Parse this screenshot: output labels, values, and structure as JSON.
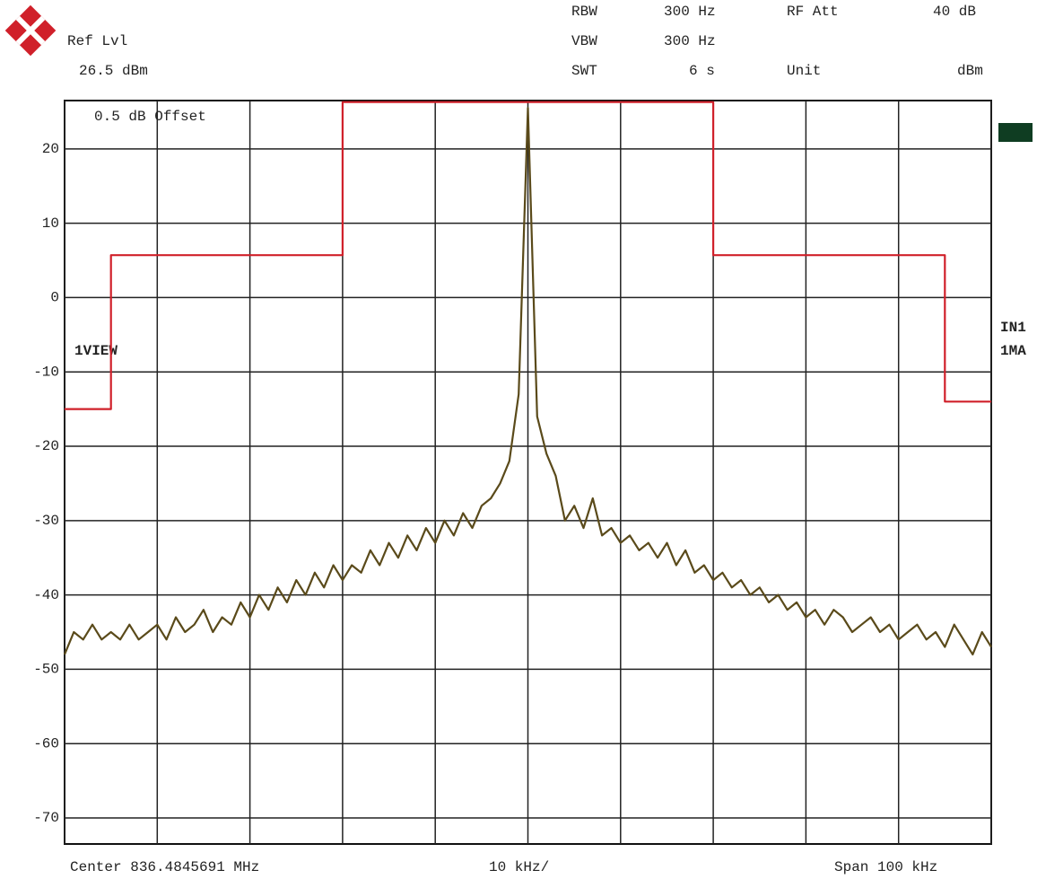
{
  "chart_data": {
    "type": "line",
    "annotations": [
      "RBW",
      "300 Hz",
      "RF Att",
      "40 dB",
      "Ref Lvl",
      "VBW",
      "300 Hz",
      "26.5 dBm",
      "SWT",
      "6 s",
      "Unit",
      "dBm",
      "0.5 dB Offset",
      "1VIEW",
      "IN1",
      "1MA",
      "Center 836.4845691 MHz",
      "10 kHz/",
      "Span 100 kHz"
    ],
    "xlim": [
      -50,
      50
    ],
    "xticks": [
      -50,
      -40,
      -30,
      -20,
      -10,
      0,
      10,
      20,
      30,
      40,
      50
    ],
    "ylim": [
      -73.5,
      26.5
    ],
    "yticks": [
      -70,
      -60,
      -50,
      -40,
      -30,
      -20,
      -10,
      0,
      10,
      20
    ],
    "grid": true,
    "series": [
      {
        "color": "#d0202a",
        "x": [
          -50,
          -45,
          -45,
          -20,
          -20,
          20,
          20,
          45,
          45,
          50
        ],
        "values": [
          -15,
          -15,
          5.7,
          5.7,
          26.3,
          26.3,
          5.7,
          5.7,
          -14,
          -14
        ]
      },
      {
        "color": "#5a4a1a",
        "x": [
          -50,
          -49,
          -48,
          -47,
          -46,
          -45,
          -44,
          -43,
          -42,
          -41,
          -40,
          -39,
          -38,
          -37,
          -36,
          -35,
          -34,
          -33,
          -32,
          -31,
          -30,
          -29,
          -28,
          -27,
          -26,
          -25,
          -24,
          -23,
          -22,
          -21,
          -20,
          -19,
          -18,
          -17,
          -16,
          -15,
          -14,
          -13,
          -12,
          -11,
          -10,
          -9,
          -8,
          -7,
          -6,
          -5,
          -4,
          -3,
          -2,
          -1,
          0,
          1,
          2,
          3,
          4,
          5,
          6,
          7,
          8,
          9,
          10,
          11,
          12,
          13,
          14,
          15,
          16,
          17,
          18,
          19,
          20,
          21,
          22,
          23,
          24,
          25,
          26,
          27,
          28,
          29,
          30,
          31,
          32,
          33,
          34,
          35,
          36,
          37,
          38,
          39,
          40,
          41,
          42,
          43,
          44,
          45,
          46,
          47,
          48,
          49,
          50
        ],
        "values": [
          -48,
          -45,
          -46,
          -44,
          -46,
          -45,
          -46,
          -44,
          -46,
          -45,
          -44,
          -46,
          -43,
          -45,
          -44,
          -42,
          -45,
          -43,
          -44,
          -41,
          -43,
          -40,
          -42,
          -39,
          -41,
          -38,
          -40,
          -37,
          -39,
          -36,
          -38,
          -36,
          -37,
          -34,
          -36,
          -33,
          -35,
          -32,
          -34,
          -31,
          -33,
          -30,
          -32,
          -29,
          -31,
          -28,
          -27,
          -25,
          -22,
          -13,
          25.5,
          -16,
          -21,
          -24,
          -30,
          -28,
          -31,
          -27,
          -32,
          -31,
          -33,
          -32,
          -34,
          -33,
          -35,
          -33,
          -36,
          -34,
          -37,
          -36,
          -38,
          -37,
          -39,
          -38,
          -40,
          -39,
          -41,
          -40,
          -42,
          -41,
          -43,
          -42,
          -44,
          -42,
          -43,
          -45,
          -44,
          -43,
          -45,
          -44,
          -46,
          -45,
          -44,
          -46,
          -45,
          -47,
          -44,
          -46,
          -48,
          -45,
          -47
        ]
      }
    ]
  }
}
